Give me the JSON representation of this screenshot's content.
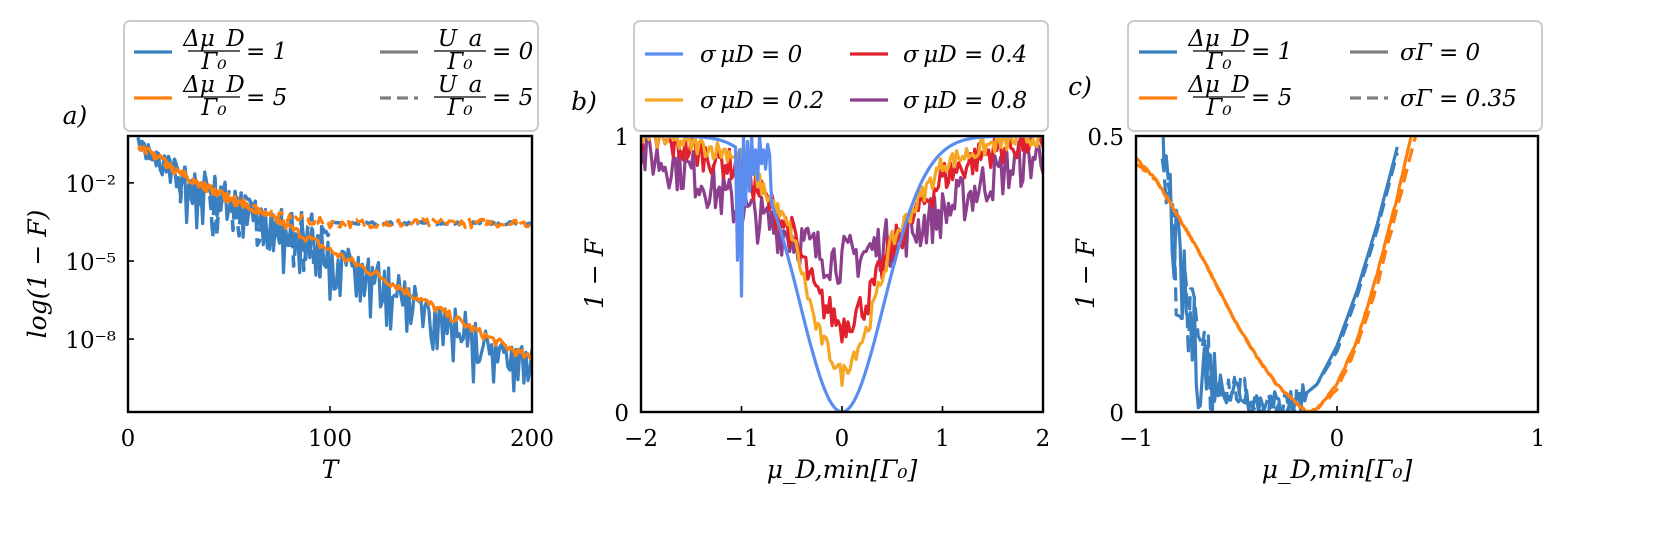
{
  "colors": {
    "blue": "#3a7fbf",
    "orange": "#ff7f0e",
    "lightblue": "#5b8cf0",
    "gold": "#f5a623",
    "red": "#e1202e",
    "purple": "#8c3f8c",
    "gray": "#7f7f7f"
  },
  "chart_data": [
    {
      "type": "line",
      "panel_label": "a)",
      "xlabel": "T",
      "ylabel": "log(1 − F)",
      "xlim": [
        0,
        200
      ],
      "ylim_log10": [
        -10.8,
        -0.2
      ],
      "yscale": "log",
      "xticks": [
        "0",
        "100",
        "200"
      ],
      "yticks": [
        "10⁻²",
        "10⁻⁵",
        "10⁻⁸"
      ],
      "ytick_values_log10": [
        -2,
        -5,
        -8
      ],
      "legend_placement": "above",
      "legend": [
        {
          "label": "Δμ_D / Γ₀ = 1",
          "color": "blue",
          "style": "solid"
        },
        {
          "label": "Δμ_D / Γ₀ = 5",
          "color": "orange",
          "style": "solid"
        },
        {
          "label": "U_a / Γ₀ = 0",
          "color": "gray",
          "style": "solid"
        },
        {
          "label": "U_a / Γ₀ = 5",
          "color": "gray",
          "style": "dashed"
        }
      ],
      "series": [
        {
          "name": "Δμ_D/Γ₀ = 1, U_a/Γ₀ = 0",
          "x": [
            5,
            25,
            50,
            75,
            100,
            125,
            150,
            175,
            200
          ],
          "log10_y": [
            -0.6,
            -1.4,
            -2.3,
            -3.3,
            -4.4,
            -5.4,
            -6.5,
            -7.7,
            -8.6
          ],
          "oscillating": true
        },
        {
          "name": "Δμ_D/Γ₀ = 5, U_a/Γ₀ = 0",
          "x": [
            5,
            25,
            50,
            75,
            100,
            125,
            150,
            175,
            200
          ],
          "log10_y": [
            -0.5,
            -1.6,
            -2.6,
            -3.5,
            -4.6,
            -5.6,
            -6.7,
            -7.8,
            -8.8
          ]
        },
        {
          "name": "Δμ_D/Γ₀ = 1, U_a/Γ₀ = 5",
          "x": [
            5,
            25,
            50,
            75,
            100,
            125,
            150,
            175,
            200
          ],
          "log10_y": [
            -0.6,
            -1.4,
            -2.3,
            -3.2,
            -3.55,
            -3.55,
            -3.55,
            -3.55,
            -3.55
          ],
          "oscillating": true
        },
        {
          "name": "Δμ_D/Γ₀ = 5, U_a/Γ₀ = 5",
          "x": [
            5,
            25,
            50,
            75,
            100,
            125,
            150,
            175,
            200
          ],
          "log10_y": [
            -0.5,
            -1.6,
            -2.6,
            -3.3,
            -3.55,
            -3.55,
            -3.55,
            -3.55,
            -3.55
          ]
        }
      ]
    },
    {
      "type": "line",
      "panel_label": "b)",
      "xlabel": "μ_D,min[Γ₀]",
      "ylabel": "1 − F",
      "xlim": [
        -2,
        2
      ],
      "ylim": [
        0,
        1
      ],
      "xticks": [
        "−2",
        "−1",
        "0",
        "1",
        "2"
      ],
      "xtick_values": [
        -2,
        -1,
        0,
        1,
        2
      ],
      "yticks": [
        "0",
        "1"
      ],
      "ytick_values": [
        0,
        1
      ],
      "legend_placement": "above",
      "legend": [
        {
          "label": "σ_μD = 0",
          "color": "lightblue"
        },
        {
          "label": "σ_μD = 0.2",
          "color": "gold"
        },
        {
          "label": "σ_μD = 0.4",
          "color": "red"
        },
        {
          "label": "σ_μD = 0.8",
          "color": "purple"
        }
      ],
      "series": [
        {
          "name": "σ_μD = 0",
          "x": [
            -2,
            -1.5,
            -1,
            -0.5,
            -0.25,
            0,
            0.25,
            0.5,
            1,
            1.5,
            2
          ],
          "y": [
            1.0,
            0.99,
            0.96,
            0.62,
            0.22,
            0.0,
            0.22,
            0.62,
            0.93,
            0.98,
            1.0
          ]
        },
        {
          "name": "σ_μD = 0.2",
          "x": [
            -2,
            -1.5,
            -1,
            -0.5,
            -0.25,
            0,
            0.25,
            0.5,
            1,
            1.5,
            2
          ],
          "y": [
            1.0,
            0.97,
            0.93,
            0.65,
            0.3,
            0.13,
            0.3,
            0.62,
            0.9,
            0.97,
            1.0
          ]
        },
        {
          "name": "σ_μD = 0.4",
          "x": [
            -2,
            -1.5,
            -1,
            -0.5,
            -0.25,
            0,
            0.25,
            0.5,
            1,
            1.5,
            2
          ],
          "y": [
            0.99,
            0.95,
            0.88,
            0.65,
            0.42,
            0.31,
            0.4,
            0.6,
            0.85,
            0.95,
            0.99
          ]
        },
        {
          "name": "σ_μD = 0.8",
          "x": [
            -2,
            -1.5,
            -1,
            -0.5,
            -0.25,
            0,
            0.25,
            0.5,
            1,
            1.5,
            2
          ],
          "y": [
            0.94,
            0.87,
            0.73,
            0.64,
            0.58,
            0.55,
            0.58,
            0.62,
            0.72,
            0.85,
            0.94
          ]
        }
      ]
    },
    {
      "type": "line",
      "panel_label": "c)",
      "xlabel": "μ_D,min[Γ₀]",
      "ylabel": "1 − F",
      "xlim": [
        -1,
        1
      ],
      "ylim": [
        0,
        0.5
      ],
      "xticks": [
        "−1",
        "0",
        "1"
      ],
      "xtick_values": [
        -1,
        0,
        1
      ],
      "yticks": [
        "0",
        "0.5"
      ],
      "ytick_values": [
        0,
        0.5
      ],
      "legend_placement": "above",
      "legend": [
        {
          "label": "Δμ_D / Γ₀ = 1",
          "color": "blue",
          "style": "solid"
        },
        {
          "label": "Δμ_D / Γ₀ = 5",
          "color": "orange",
          "style": "solid"
        },
        {
          "label": "σ_Γ = 0",
          "color": "gray",
          "style": "solid"
        },
        {
          "label": "σ_Γ = 0.35",
          "color": "gray",
          "style": "dashed"
        }
      ],
      "series": [
        {
          "name": "Δμ_D/Γ₀ = 1, σ_Γ = 0",
          "x": [
            -0.87,
            -0.8,
            -0.7,
            -0.6,
            -0.5,
            -0.4,
            -0.3,
            -0.2,
            -0.1,
            0,
            0.1,
            0.2,
            0.3
          ],
          "y": [
            0.5,
            0.28,
            0.1,
            0.05,
            0.04,
            0.02,
            0.01,
            0.02,
            0.05,
            0.12,
            0.22,
            0.34,
            0.48
          ]
        },
        {
          "name": "Δμ_D/Γ₀ = 1, σ_Γ = 0.35",
          "x": [
            -0.87,
            -0.8,
            -0.7,
            -0.6,
            -0.5,
            -0.4,
            -0.3,
            -0.2,
            -0.1,
            0,
            0.1,
            0.2,
            0.3
          ],
          "y": [
            0.5,
            0.26,
            0.11,
            0.05,
            0.04,
            0.02,
            0.01,
            0.02,
            0.05,
            0.11,
            0.21,
            0.33,
            0.47
          ]
        },
        {
          "name": "Δμ_D/Γ₀ = 5, σ_Γ = 0",
          "x": [
            -1,
            -0.9,
            -0.8,
            -0.7,
            -0.6,
            -0.5,
            -0.4,
            -0.3,
            -0.2,
            -0.15,
            -0.1,
            0,
            0.1,
            0.2,
            0.3,
            0.37
          ],
          "y": [
            0.46,
            0.42,
            0.36,
            0.3,
            0.23,
            0.16,
            0.1,
            0.05,
            0.015,
            0.0,
            0.005,
            0.05,
            0.13,
            0.25,
            0.39,
            0.5
          ]
        },
        {
          "name": "Δμ_D/Γ₀ = 5, σ_Γ = 0.35",
          "x": [
            -1,
            -0.9,
            -0.8,
            -0.7,
            -0.6,
            -0.5,
            -0.4,
            -0.3,
            -0.2,
            -0.15,
            -0.1,
            0,
            0.1,
            0.2,
            0.3,
            0.39
          ],
          "y": [
            0.45,
            0.42,
            0.36,
            0.3,
            0.23,
            0.16,
            0.1,
            0.05,
            0.015,
            0.0,
            0.005,
            0.04,
            0.12,
            0.23,
            0.37,
            0.5
          ]
        }
      ]
    }
  ]
}
